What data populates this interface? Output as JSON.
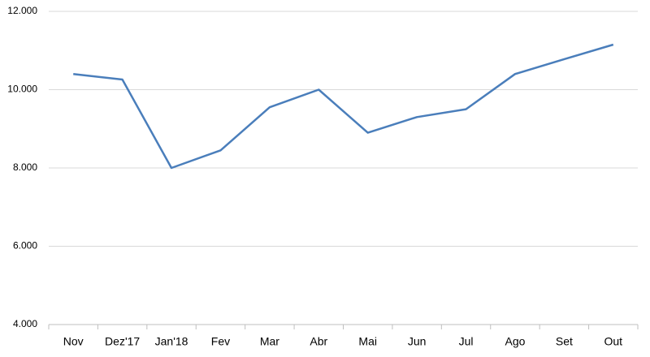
{
  "chart_data": {
    "type": "line",
    "categories": [
      "Nov",
      "Dez'17",
      "Jan'18",
      "Fev",
      "Mar",
      "Abr",
      "Mai",
      "Jun",
      "Jul",
      "Ago",
      "Set",
      "Out"
    ],
    "series": [
      {
        "color": "#4a7ebb",
        "values": [
          10400,
          10260,
          8000,
          8450,
          9550,
          10000,
          8900,
          9300,
          9500,
          10400,
          10780,
          11150
        ]
      }
    ],
    "ylim": [
      4000,
      12000
    ],
    "yticks": [
      {
        "value": 4000,
        "label": "4.000"
      },
      {
        "value": 6000,
        "label": "6.000"
      },
      {
        "value": 8000,
        "label": "8.000"
      },
      {
        "value": 10000,
        "label": "10.000"
      },
      {
        "value": 12000,
        "label": "12.000"
      }
    ],
    "grid": true
  }
}
